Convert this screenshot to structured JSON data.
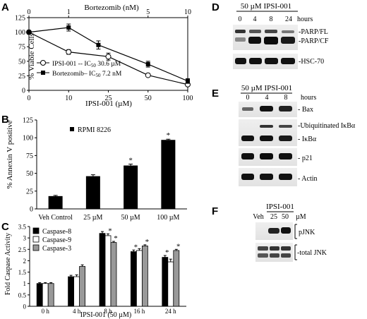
{
  "panels": {
    "A": "A",
    "B": "B",
    "C": "C",
    "D": "D",
    "E": "E",
    "F": "F"
  },
  "chart_data": [
    {
      "panel": "A",
      "type": "line",
      "ylabel": "% Viable Cells",
      "xlabel_bottom": "IPSI-001 (µM)",
      "xlabel_top": "Bortezomib (nM)",
      "x_bottom_ticks": [
        0,
        10,
        25,
        50,
        100
      ],
      "x_top_ticks": [
        0,
        1,
        5,
        10
      ],
      "y_ticks": [
        0,
        25,
        50,
        75,
        100,
        125
      ],
      "ylim": [
        0,
        125
      ],
      "series": [
        {
          "name": "IPSI-001 -- IC",
          "name_sub": "50",
          "name_rest": " 30.6 µM",
          "axis": "bottom",
          "marker": "circle",
          "x": [
            0,
            10,
            25,
            50,
            100
          ],
          "y": [
            100,
            66,
            58,
            26,
            10
          ],
          "err": [
            0,
            4,
            6,
            0,
            0
          ]
        },
        {
          "name": "Bortezomib– IC",
          "name_sub": "50",
          "name_rest": " 7.2 nM",
          "axis": "top",
          "marker": "square",
          "x": [
            0,
            1,
            2.5,
            5,
            10
          ],
          "y": [
            100,
            108,
            78,
            45,
            16
          ],
          "err": [
            0,
            6,
            7,
            5,
            4
          ]
        }
      ]
    },
    {
      "panel": "B",
      "type": "bar",
      "ylabel": "% Annexin V positive",
      "legend": "RPMI 8226",
      "categories": [
        "Veh Control",
        "25 µM",
        "50 µM",
        "100 µM"
      ],
      "values": [
        18,
        46,
        61,
        97
      ],
      "errors": [
        1,
        2,
        2,
        1
      ],
      "significant": [
        false,
        false,
        true,
        true
      ],
      "y_ticks": [
        0,
        25,
        50,
        75,
        100,
        125
      ],
      "ylim": [
        0,
        125
      ]
    },
    {
      "panel": "C",
      "type": "bar",
      "ylabel": "Fold Caspase Activity",
      "xlabel": "IPSI-001 (50 µM)",
      "categories": [
        "0 h",
        "4 h",
        "8 h",
        "16 h",
        "24 h"
      ],
      "y_ticks": [
        0,
        0.5,
        1,
        1.5,
        2,
        2.5,
        3,
        3.5
      ],
      "ylim": [
        0,
        3.5
      ],
      "series": [
        {
          "name": "Caspase-8",
          "color": "#000000",
          "values": [
            1.0,
            1.3,
            3.2,
            2.4,
            2.15
          ],
          "err": [
            0.04,
            0.06,
            0.08,
            0.07,
            0.08
          ],
          "sig": [
            false,
            false,
            false,
            true,
            true
          ]
        },
        {
          "name": "Caspase-9",
          "color": "#ffffff",
          "values": [
            1.0,
            1.3,
            3.1,
            2.45,
            1.95
          ],
          "err": [
            0.04,
            0.08,
            0.08,
            0.08,
            0.12
          ],
          "sig": [
            false,
            false,
            true,
            false,
            false
          ]
        },
        {
          "name": "Caspase-3",
          "color": "#999999",
          "values": [
            1.0,
            1.75,
            2.8,
            2.65,
            2.45
          ],
          "err": [
            0.04,
            0.07,
            0.05,
            0.05,
            0.05
          ],
          "sig": [
            false,
            false,
            true,
            true,
            true
          ]
        }
      ]
    }
  ],
  "blot_D": {
    "treatment": "50 µM IPSI-001",
    "lanes": [
      "0",
      "4",
      "8",
      "24"
    ],
    "unit": "hours",
    "labels": [
      "-PARP/FL",
      "-PARP/CF",
      "-HSC-70"
    ]
  },
  "blot_E": {
    "treatment": "50 µM IPSI-001",
    "lanes": [
      "0",
      "4",
      "8"
    ],
    "unit": "hours",
    "labels": [
      "- Bax",
      "-Ubiquitinated IκBα",
      "- IκBα",
      "- p21",
      "- Actin"
    ]
  },
  "blot_F": {
    "treatment": "IPSI-001",
    "lanes": [
      "Veh",
      "25",
      "50"
    ],
    "unit": "µM",
    "labels": [
      "pJNK",
      "-total JNK"
    ]
  }
}
